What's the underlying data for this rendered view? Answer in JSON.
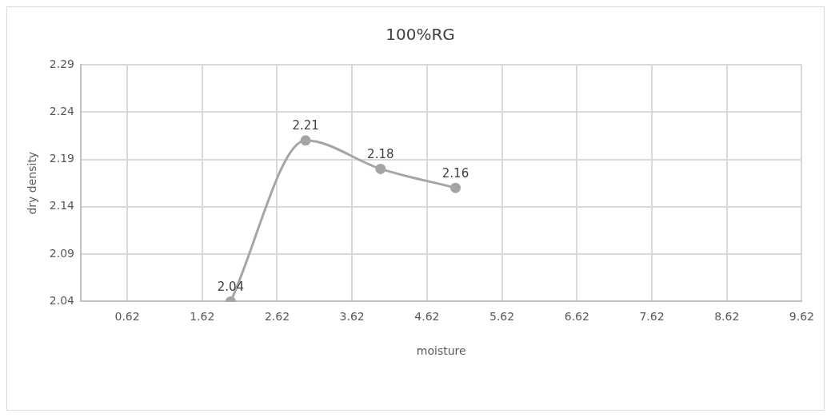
{
  "chart_data": {
    "type": "line",
    "title": "100%RG",
    "xlabel": "moisture",
    "ylabel": "dry density",
    "x": [
      2,
      3,
      4,
      5
    ],
    "series": [
      {
        "color": "#a5a5a5",
        "values": [
          2.04,
          2.21,
          2.18,
          2.16
        ]
      }
    ],
    "xlim": [
      0,
      9.62
    ],
    "xticks": [
      0.62,
      1.62,
      2.62,
      3.62,
      4.62,
      5.62,
      6.62,
      7.62,
      8.62,
      9.62
    ],
    "ylim": [
      2.04,
      2.29
    ],
    "yticks": [
      2.04,
      2.09,
      2.14,
      2.19,
      2.24,
      2.29
    ],
    "grid": true,
    "legend": false,
    "marker": "circle",
    "line_style": "solid",
    "data_labels": true
  }
}
